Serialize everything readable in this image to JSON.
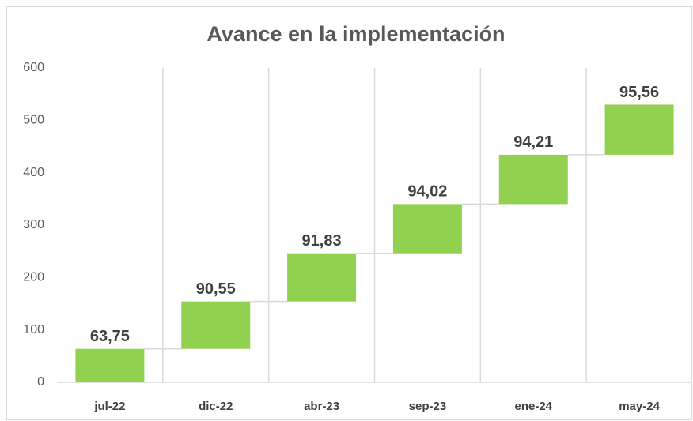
{
  "chart_data": {
    "type": "waterfall",
    "title": "Avance en la implementación",
    "categories": [
      "jul-22",
      "dic-22",
      "abr-23",
      "sep-23",
      "ene-24",
      "may-24"
    ],
    "values": [
      63.75,
      90.55,
      91.83,
      94.02,
      94.21,
      95.56
    ],
    "value_labels": [
      "63,75",
      "90,55",
      "91,83",
      "94,02",
      "94,21",
      "95,56"
    ],
    "color": "#92d050",
    "ylim": [
      0,
      600
    ],
    "yticks": [
      0,
      100,
      200,
      300,
      400,
      500,
      600
    ],
    "grid": true
  }
}
